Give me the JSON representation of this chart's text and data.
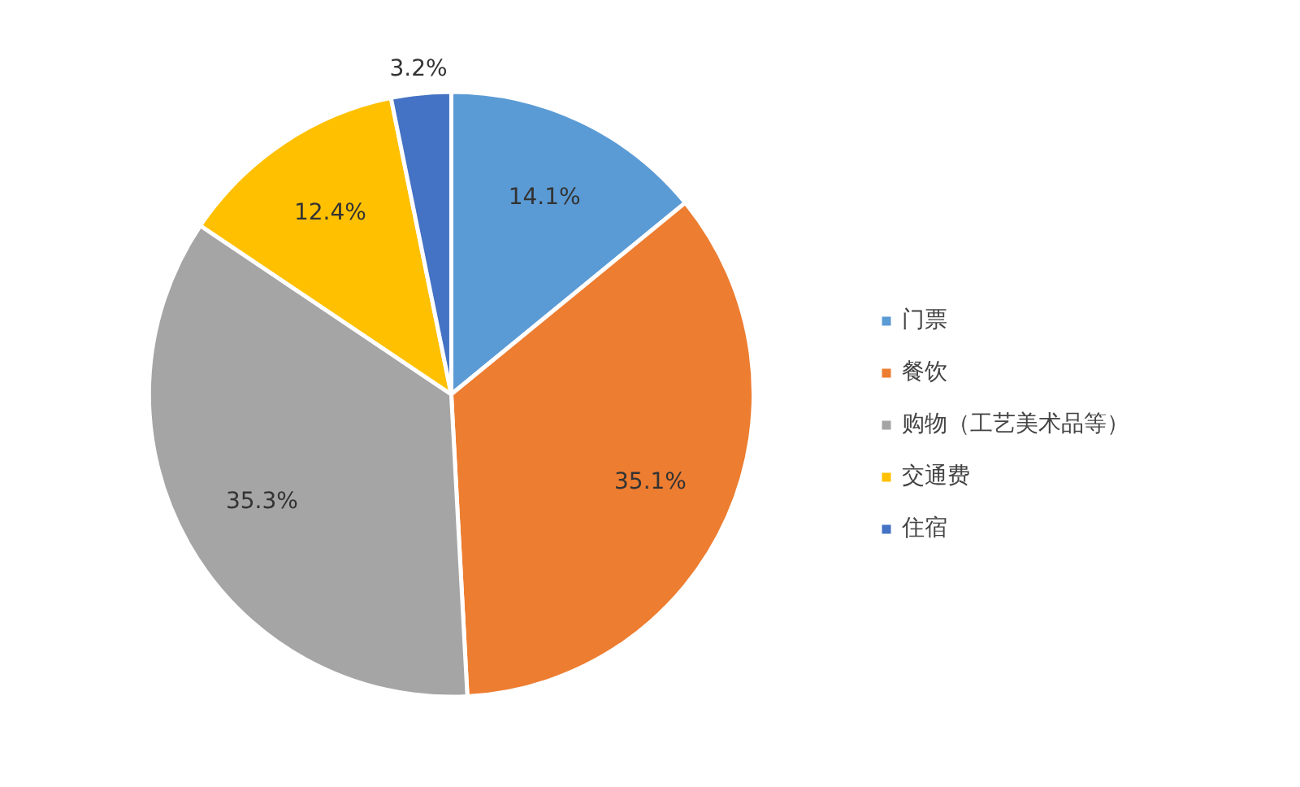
{
  "chart_data": {
    "type": "pie",
    "categories": [
      "门票",
      "餐饮",
      "购物（工艺美术品等）",
      "交通费",
      "住宿"
    ],
    "values": [
      14.1,
      35.1,
      35.3,
      12.4,
      3.2
    ],
    "colors": [
      "#5b9bd5",
      "#ed7d31",
      "#a5a5a5",
      "#ffc000",
      "#4472c4"
    ],
    "value_labels": [
      "14.1%",
      "35.1%",
      "35.3%",
      "12.4%",
      "3.2%"
    ],
    "legend": "right"
  }
}
